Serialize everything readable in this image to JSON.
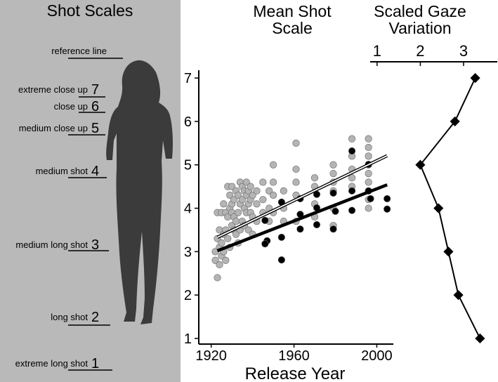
{
  "shot_scales": {
    "title": "Shot Scales",
    "reference": "reference line",
    "levels": [
      {
        "label": "extreme close up",
        "number": 7
      },
      {
        "label": "close up",
        "number": 6
      },
      {
        "label": "medium close up",
        "number": 5
      },
      {
        "label": "medium shot",
        "number": 4
      },
      {
        "label": "medium long shot",
        "number": 3
      },
      {
        "label": "long shot",
        "number": 2
      },
      {
        "label": "extreme long shot",
        "number": 1
      }
    ]
  },
  "chart_data": [
    {
      "type": "scatter",
      "title": "Mean Shot Scale",
      "x_label": "Release Year",
      "xlim": [
        1914,
        2008
      ],
      "ylim": [
        0.87,
        7.18
      ],
      "xticks": [
        1920,
        1960,
        2000
      ],
      "yticks": [
        1,
        2,
        3,
        4,
        5,
        6,
        7
      ],
      "series": [
        {
          "mark": "point",
          "color": "#b4b4b4",
          "x": [
            1922,
            1922,
            1923,
            1923,
            1923,
            1924,
            1924,
            1924,
            1925,
            1925,
            1925,
            1926,
            1926,
            1926,
            1927,
            1927,
            1927,
            1928,
            1928,
            1928,
            1929,
            1929,
            1929,
            1930,
            1930,
            1930,
            1930,
            1931,
            1931,
            1931,
            1932,
            1932,
            1932,
            1933,
            1933,
            1933,
            1934,
            1934,
            1934,
            1935,
            1935,
            1935,
            1936,
            1936,
            1936,
            1937,
            1937,
            1937,
            1938,
            1938,
            1938,
            1939,
            1939,
            1939,
            1940,
            1940,
            1940,
            1942,
            1942,
            1942,
            1945,
            1945,
            1945,
            1948,
            1948,
            1948,
            1950,
            1950,
            1950,
            1950,
            1955,
            1955,
            1955,
            1961,
            1961,
            1961,
            1961,
            1961,
            1970,
            1970,
            1970,
            1970,
            1979,
            1979,
            1979,
            1979,
            1979,
            1979,
            1988,
            1988,
            1988,
            1988,
            1988,
            1996,
            1996,
            1996,
            1996,
            1996,
            1996,
            1996,
            1996,
            1996
          ],
          "values": [
            3.0,
            2.8,
            2.4,
            3.3,
            3.9,
            2.7,
            3.5,
            3.1,
            3.2,
            3.9,
            2.9,
            3.4,
            4.1,
            3.0,
            3.5,
            3.9,
            2.8,
            3.3,
            3.8,
            4.5,
            3.1,
            4.0,
            4.3,
            3.6,
            4.1,
            4.5,
            3.9,
            3.8,
            4.2,
            3.5,
            3.7,
            4.4,
            3.4,
            3.9,
            4.3,
            3.2,
            4.1,
            4.6,
            3.5,
            3.7,
            4.2,
            4.5,
            4.0,
            3.6,
            4.4,
            4.3,
            3.9,
            4.6,
            4.1,
            3.5,
            4.4,
            4.2,
            3.9,
            4.5,
            3.8,
            4.3,
            3.4,
            4.4,
            3.7,
            4.1,
            4.2,
            3.9,
            4.6,
            3.7,
            4.4,
            4.0,
            3.9,
            4.3,
            4.6,
            5.0,
            4.0,
            4.4,
            3.7,
            5.5,
            4.9,
            4.6,
            4.3,
            3.7,
            4.7,
            4.5,
            4.1,
            3.8,
            5.0,
            4.8,
            4.6,
            4.4,
            4.0,
            3.6,
            5.6,
            5.2,
            4.9,
            4.7,
            4.5,
            5.6,
            5.4,
            5.2,
            5.0,
            4.8,
            4.6,
            4.4,
            4.2,
            4.0
          ]
        },
        {
          "mark": "point",
          "color": "#000000",
          "x": [
            1947,
            1946,
            1946,
            1954,
            1954,
            1954,
            1963,
            1963,
            1963,
            1971,
            1971,
            1971,
            1979,
            1979,
            1980,
            1988,
            1988,
            1988,
            1996,
            1996,
            1997,
            2005,
            2005
          ],
          "values": [
            3.25,
            3.18,
            3.72,
            4.14,
            3.33,
            2.81,
            3.86,
            3.52,
            4.22,
            4.32,
            3.62,
            4.01,
            3.52,
            4.35,
            3.93,
            5.32,
            4.4,
            3.95,
            5.01,
            4.4,
            4.22,
            4.22,
            3.98
          ]
        },
        {
          "mark": "line",
          "color": "#ffffff",
          "x": [
            1923,
            2005
          ],
          "values": [
            3.33,
            5.21
          ]
        },
        {
          "mark": "line",
          "color": "#000000",
          "x": [
            1923,
            2005
          ],
          "values": [
            3.02,
            4.54
          ]
        }
      ]
    },
    {
      "type": "line",
      "title": "Scaled Gaze Variation",
      "orientation": "horizontal",
      "xlim": [
        0.84,
        3.78
      ],
      "xticks": [
        1,
        2,
        3
      ],
      "ylim": [
        0.87,
        7.18
      ],
      "y": [
        1,
        2,
        3,
        4,
        5,
        6,
        7
      ],
      "values": [
        3.38,
        2.88,
        2.65,
        2.42,
        2.0,
        2.8,
        3.27
      ],
      "color": "#000000"
    }
  ]
}
